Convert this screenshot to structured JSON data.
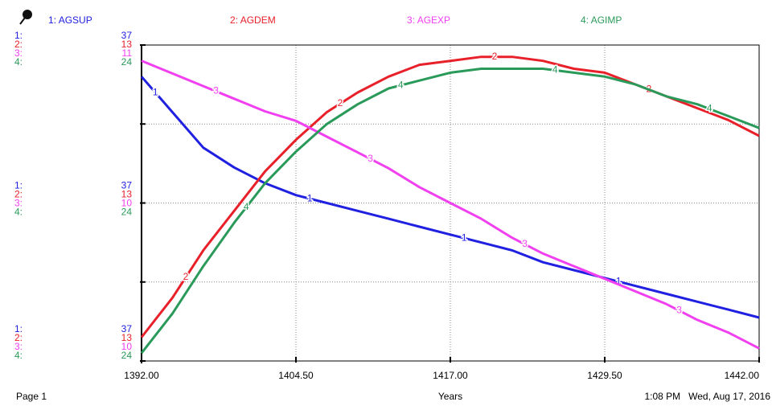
{
  "chart_data": {
    "type": "line",
    "xlabel": "Years",
    "footer_left": "Page 1",
    "footer_right": "1:08 PM   Wed, Aug 17, 2016",
    "x": [
      1392,
      1394.5,
      1397,
      1399.5,
      1402,
      1404.5,
      1407,
      1409.5,
      1412,
      1414.5,
      1417,
      1419.5,
      1422,
      1424.5,
      1427,
      1429.5,
      1432,
      1434.5,
      1437,
      1439.5,
      1442
    ],
    "xlim": [
      1392,
      1442
    ],
    "xticks": [
      {
        "value": 1392,
        "label": "1392.00"
      },
      {
        "value": 1404.5,
        "label": "1404.50"
      },
      {
        "value": 1417,
        "label": "1417.00"
      },
      {
        "value": 1429.5,
        "label": "1429.50"
      },
      {
        "value": 1442,
        "label": "1442.00"
      }
    ],
    "grid": true,
    "series": [
      {
        "key": "1:",
        "marker": "1",
        "name": "AGSUP",
        "color": "#2020e0",
        "ylim": [
          36.6,
          37.4
        ],
        "yticks": [
          {
            "value": 36.6,
            "label": "37"
          },
          {
            "value": 36.8,
            "label": null
          },
          {
            "value": 37.0,
            "label": "37"
          },
          {
            "value": 37.2,
            "label": null
          },
          {
            "value": 37.4,
            "label": "37"
          }
        ],
        "values": [
          37.32,
          37.23,
          37.14,
          37.09,
          37.05,
          37.02,
          37.0,
          36.98,
          36.96,
          36.94,
          36.92,
          36.9,
          36.88,
          36.85,
          36.83,
          36.81,
          36.79,
          36.77,
          36.75,
          36.73,
          36.71
        ]
      },
      {
        "key": "2:",
        "marker": "2",
        "name": "AGDEM",
        "color": "#e8202a",
        "ylim": [
          12.6,
          13.4
        ],
        "yticks": [
          {
            "value": 12.6,
            "label": "13"
          },
          {
            "value": 12.8,
            "label": null
          },
          {
            "value": 13.0,
            "label": "13"
          },
          {
            "value": 13.2,
            "label": null
          },
          {
            "value": 13.4,
            "label": "13"
          }
        ],
        "values": [
          12.66,
          12.76,
          12.88,
          12.98,
          13.08,
          13.16,
          13.23,
          13.28,
          13.32,
          13.35,
          13.36,
          13.37,
          13.37,
          13.36,
          13.34,
          13.33,
          13.3,
          13.27,
          13.24,
          13.21,
          13.17
        ]
      },
      {
        "key": "3:",
        "marker": "3",
        "name": "AGEXP",
        "color": "#f040f0",
        "ylim": [
          9.6,
          10.6
        ],
        "yticks": [
          {
            "value": 9.6,
            "label": "10"
          },
          {
            "value": 9.85,
            "label": null
          },
          {
            "value": 10.1,
            "label": "10"
          },
          {
            "value": 10.35,
            "label": null
          },
          {
            "value": 10.6,
            "label": "11"
          }
        ],
        "values": [
          10.55,
          10.51,
          10.47,
          10.43,
          10.39,
          10.36,
          10.31,
          10.26,
          10.21,
          10.15,
          10.1,
          10.05,
          9.99,
          9.94,
          9.9,
          9.86,
          9.82,
          9.78,
          9.73,
          9.69,
          9.64
        ]
      },
      {
        "key": "4:",
        "marker": "4",
        "name": "AGIMP",
        "color": "#2a9a5a",
        "ylim": [
          23.6,
          24.4
        ],
        "yticks": [
          {
            "value": 23.6,
            "label": "24"
          },
          {
            "value": 23.8,
            "label": null
          },
          {
            "value": 24.0,
            "label": "24"
          },
          {
            "value": 24.2,
            "label": null
          },
          {
            "value": 24.4,
            "label": "24"
          }
        ],
        "values": [
          23.62,
          23.72,
          23.84,
          23.95,
          24.05,
          24.13,
          24.2,
          24.25,
          24.29,
          24.31,
          24.33,
          24.34,
          24.34,
          24.34,
          24.33,
          24.32,
          24.3,
          24.27,
          24.25,
          24.22,
          24.19
        ]
      }
    ]
  }
}
